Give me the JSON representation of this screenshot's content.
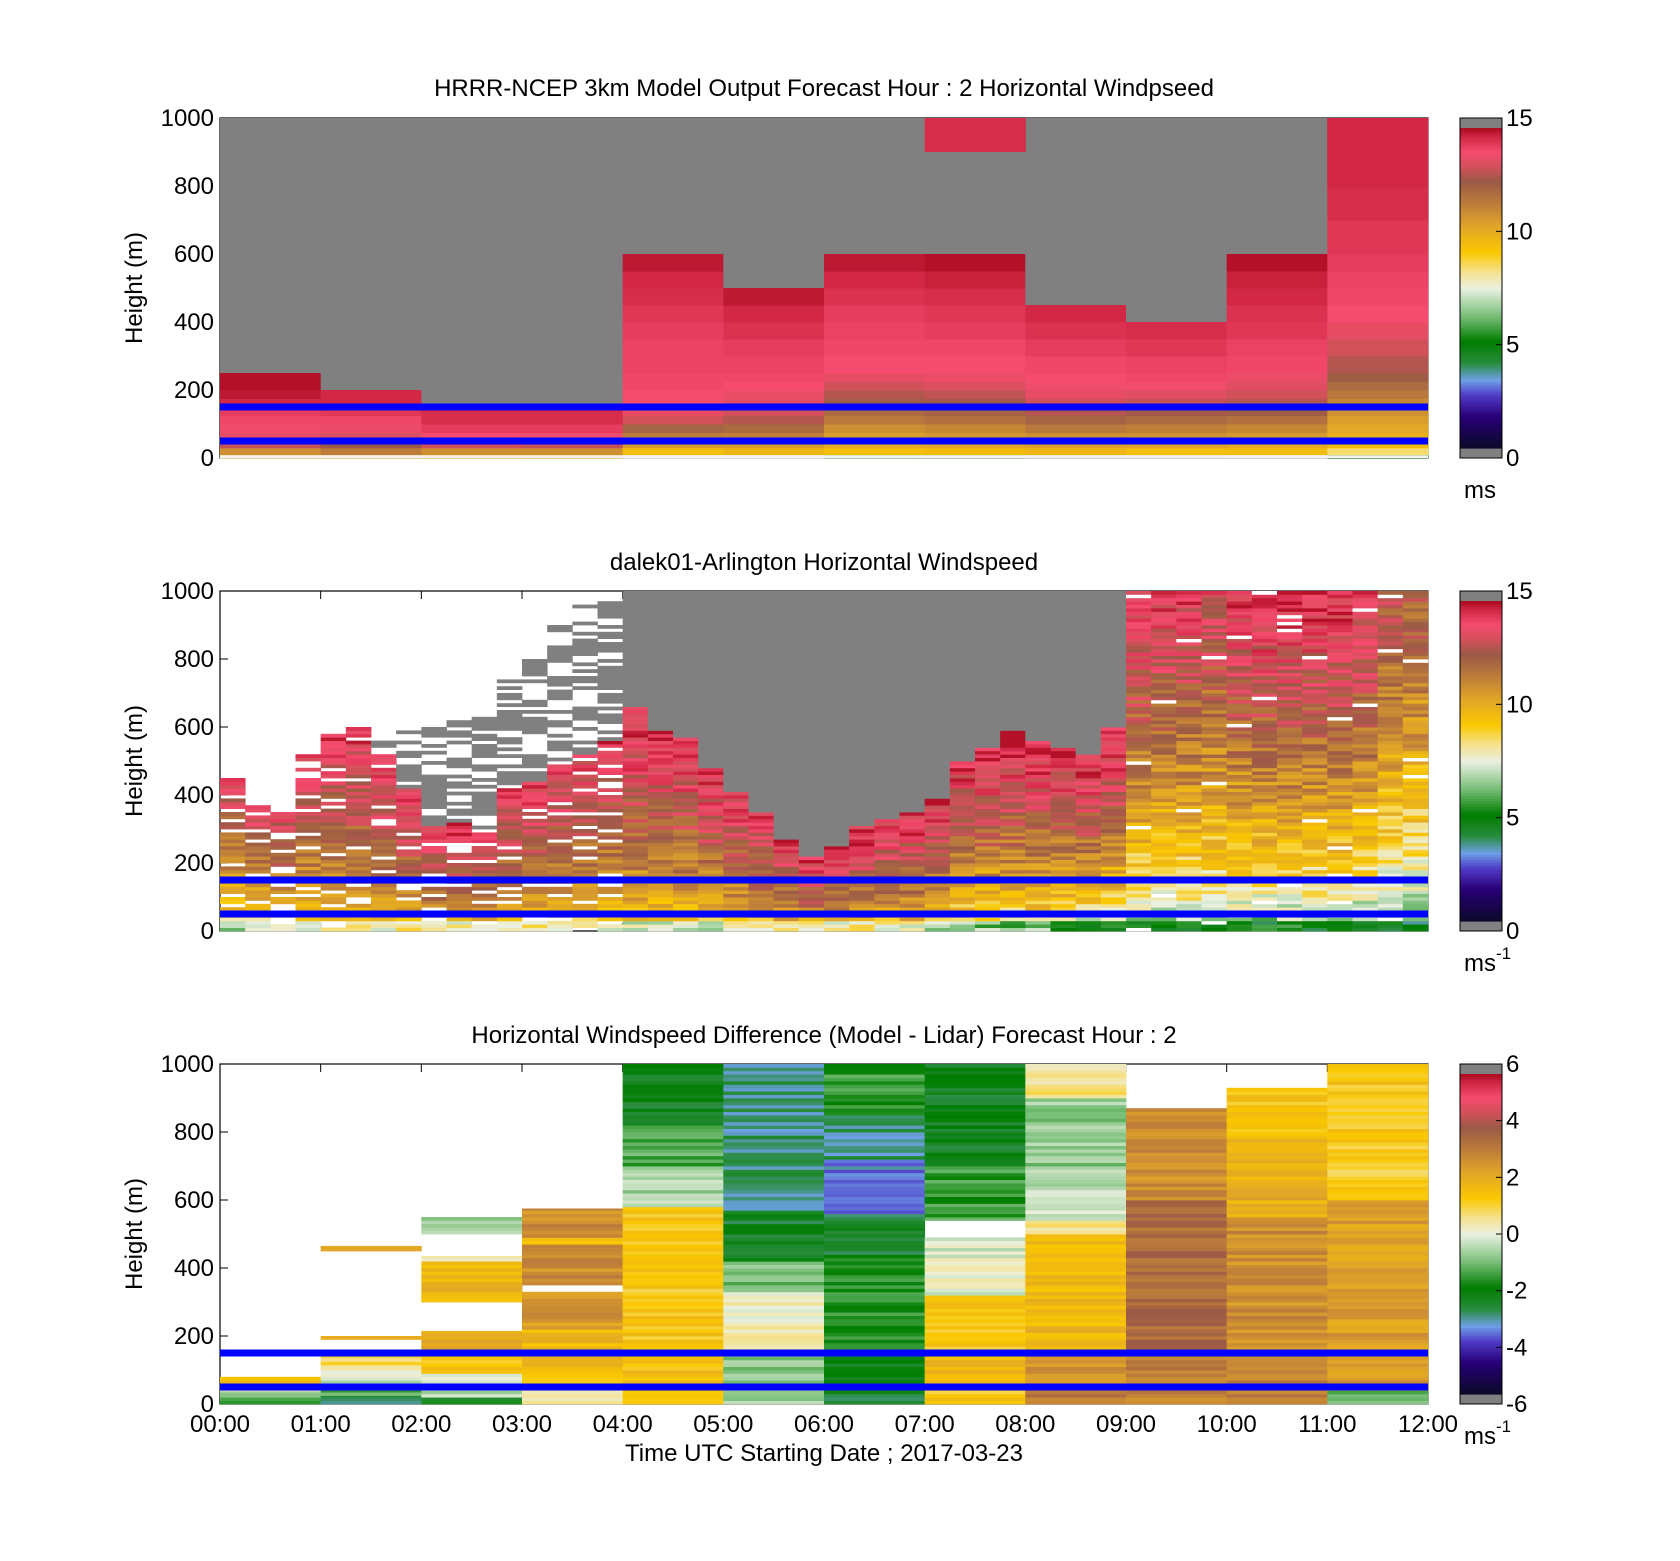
{
  "figure": {
    "x_tick_labels": [
      "00:00",
      "01:00",
      "02:00",
      "03:00",
      "04:00",
      "05:00",
      "06:00",
      "07:00",
      "08:00",
      "09:00",
      "10:00",
      "11:00",
      "12:00"
    ],
    "xlabel": "Time UTC  Starting Date ; 2017-03-23",
    "reference_lines_m": [
      150,
      50
    ],
    "reference_line_color": "#0000ff",
    "no_data_color": "#808080"
  },
  "chart_data": [
    {
      "type": "heatmap",
      "title": "HRRR-NCEP 3km Model Output   Forecast Hour : 2 Horizontal Windpseed",
      "ylabel": "Height (m)",
      "y_ticks": [
        "0",
        "200",
        "400",
        "600",
        "800",
        "1000"
      ],
      "xlim": [
        "00:00",
        "12:00"
      ],
      "ylim": [
        0,
        1000
      ],
      "colorbar": {
        "ticks": [
          "0",
          "5",
          "10",
          "15"
        ],
        "range": [
          0,
          15
        ],
        "unit": "ms",
        "unit_sup": ""
      },
      "time_bins_hours": [
        0,
        1,
        2,
        3,
        4,
        5,
        6,
        7,
        8,
        9,
        10,
        11
      ],
      "bin_width_hours": 1,
      "height_levels_m": [
        10,
        30,
        50,
        75,
        100,
        125,
        150,
        175,
        200,
        225,
        250,
        300,
        350,
        400,
        450,
        500,
        550,
        600,
        700,
        800,
        900,
        1000
      ],
      "valid_top_m": [
        250,
        200,
        150,
        150,
        600,
        500,
        600,
        600,
        450,
        400,
        600,
        1000
      ],
      "bands": [
        {
          "h": 900,
          "value": 14.5,
          "hours": [
            7
          ]
        },
        {
          "h": 800,
          "value": 14.6,
          "hours": [
            11
          ]
        }
      ],
      "profiles": [
        {
          "hour": 0,
          "values": [
            8.5,
            11.0,
            13.0,
            13.6,
            13.8,
            14.0,
            14.2,
            14.6,
            14.8,
            14.9
          ]
        },
        {
          "hour": 1,
          "values": [
            8.6,
            11.5,
            12.5,
            13.4,
            13.7,
            14.0,
            14.3,
            14.6
          ]
        },
        {
          "hour": 2,
          "values": [
            8.8,
            11.0,
            13.2,
            13.9,
            14.2,
            14.5
          ]
        },
        {
          "hour": 3,
          "values": [
            8.9,
            11.0,
            13.0,
            13.8,
            14.2,
            14.5
          ]
        },
        {
          "hour": 4,
          "values": [
            7.5,
            9.5,
            10.6,
            11.5,
            12.2,
            13.2,
            13.6,
            13.8,
            13.9,
            14.0,
            14.0,
            14.1,
            14.1,
            14.2,
            14.3,
            14.5,
            14.6,
            14.8
          ]
        },
        {
          "hour": 5,
          "values": [
            7.6,
            9.8,
            10.6,
            11.4,
            12.0,
            12.8,
            13.2,
            13.5,
            13.7,
            13.9,
            14.0,
            14.1,
            14.2,
            14.4,
            14.6,
            14.8
          ]
        },
        {
          "hour": 6,
          "values": [
            6.5,
            9.5,
            10.2,
            10.6,
            11.0,
            11.6,
            12.0,
            12.4,
            12.8,
            13.2,
            13.6,
            13.9,
            14.0,
            14.1,
            14.2,
            14.4,
            14.6,
            14.8
          ]
        },
        {
          "hour": 7,
          "values": [
            6.6,
            9.6,
            10.3,
            10.8,
            11.2,
            11.8,
            12.2,
            12.6,
            13.0,
            13.4,
            13.7,
            13.9,
            14.0,
            14.2,
            14.3,
            14.5,
            14.7,
            14.9
          ]
        },
        {
          "hour": 8,
          "values": [
            7.0,
            9.8,
            10.5,
            11.0,
            11.6,
            12.2,
            12.8,
            13.2,
            13.6,
            13.8,
            13.9,
            14.0,
            14.2,
            14.4,
            14.6
          ]
        },
        {
          "hour": 9,
          "values": [
            7.0,
            9.5,
            10.4,
            10.9,
            11.4,
            12.0,
            12.6,
            13.0,
            13.5,
            13.8,
            14.0,
            14.1,
            14.3,
            14.5
          ]
        },
        {
          "hour": 10,
          "values": [
            7.2,
            9.6,
            10.2,
            10.7,
            11.2,
            11.8,
            12.4,
            12.8,
            13.2,
            13.5,
            13.7,
            14.0,
            14.1,
            14.3,
            14.4,
            14.6,
            14.7,
            14.9
          ]
        },
        {
          "hour": 11,
          "values": [
            5.5,
            8.5,
            9.6,
            10.0,
            10.3,
            10.6,
            10.9,
            11.2,
            11.6,
            12.0,
            12.4,
            12.8,
            13.2,
            13.6,
            13.9,
            14.0,
            14.1,
            14.2,
            14.3,
            14.5,
            14.7,
            14.8
          ]
        }
      ]
    },
    {
      "type": "heatmap",
      "title": "dalek01-Arlington  Horizontal Windspeed",
      "ylabel": "Height (m)",
      "y_ticks": [
        "0",
        "200",
        "400",
        "600",
        "800",
        "1000"
      ],
      "xlim": [
        "00:00",
        "12:00"
      ],
      "ylim": [
        0,
        1000
      ],
      "colorbar": {
        "ticks": [
          "0",
          "5",
          "10",
          "15"
        ],
        "range": [
          0,
          15
        ],
        "unit": "ms",
        "unit_sup": "-1"
      },
      "time_bins_hours": [
        0,
        0.25,
        0.5,
        0.75,
        1,
        1.25,
        1.5,
        1.75,
        2,
        2.25,
        2.5,
        2.75,
        3,
        3.25,
        3.5,
        3.75,
        4,
        4.25,
        4.5,
        4.75,
        5,
        5.25,
        5.5,
        5.75,
        6,
        6.25,
        6.5,
        6.75,
        7,
        7.25,
        7.5,
        7.75,
        8,
        8.25,
        8.5,
        8.75,
        9,
        9.25,
        9.5,
        9.75,
        10,
        10.25,
        10.5,
        10.75,
        11,
        11.25,
        11.5,
        11.75
      ],
      "bin_width_hours": 0.25,
      "cell_height_m": 10,
      "column_data_top_m": [
        450,
        380,
        350,
        520,
        580,
        600,
        520,
        420,
        310,
        320,
        290,
        430,
        440,
        490,
        520,
        560,
        660,
        590,
        570,
        480,
        410,
        350,
        270,
        220,
        250,
        310,
        330,
        350,
        390,
        500,
        540,
        590,
        560,
        540,
        520,
        600,
        1000,
        1000,
        1000,
        1000,
        1000,
        1000,
        1000,
        1000,
        1000,
        1000,
        1000,
        1000
      ],
      "column_valid_top_m": [
        310,
        330,
        350,
        370,
        480,
        520,
        560,
        600,
        610,
        620,
        650,
        740,
        830,
        900,
        960,
        1000,
        1000,
        1000,
        1000,
        1000,
        1000,
        1000,
        1000,
        1000,
        1000,
        1000,
        1000,
        1000,
        1000,
        1000,
        1000,
        1000,
        1000,
        1000,
        1000,
        1000,
        1000,
        1000,
        1000,
        1000,
        1000,
        1000,
        1000,
        1000,
        1000,
        1000,
        1000,
        1000
      ],
      "column_low_speed_m_s": [
        7.5,
        7.5,
        8.0,
        8.2,
        8.4,
        8.5,
        8.6,
        8.8,
        8.8,
        8.6,
        8.7,
        8.8,
        8.8,
        8.5,
        8.4,
        8.2,
        8.0,
        7.6,
        7.6,
        7.8,
        8.0,
        8.2,
        8.5,
        8.6,
        8.5,
        8.5,
        8.2,
        8.0,
        7.6,
        7.0,
        6.8,
        6.8,
        6.8,
        6.4,
        6.0,
        5.9,
        5.6,
        5.5,
        5.6,
        5.6,
        5.4,
        5.3,
        5.4,
        5.3,
        5.2,
        5.1,
        5.0,
        5.0
      ],
      "column_high_speed_m_s": [
        13.8,
        13.9,
        14.0,
        14.2,
        14.3,
        14.4,
        14.5,
        14.3,
        14.5,
        14.6,
        14.5,
        14.4,
        14.4,
        14.3,
        14.2,
        14.3,
        14.6,
        14.5,
        14.6,
        14.6,
        14.4,
        14.4,
        14.5,
        14.6,
        14.7,
        14.6,
        14.5,
        14.5,
        14.4,
        14.4,
        14.6,
        14.7,
        14.6,
        14.6,
        14.7,
        14.8,
        14.4,
        14.2,
        14.1,
        13.6,
        14.4,
        14.6,
        14.8,
        14.5,
        14.6,
        14.3,
        13.0,
        12.6
      ],
      "layers_m": [
        {
          "top": 1000,
          "shade": 1.0
        }
      ]
    },
    {
      "type": "heatmap",
      "title": "Horizontal Windspeed Difference (Model - Lidar) Forecast Hour : 2",
      "ylabel": "Height (m)",
      "y_ticks": [
        "0",
        "200",
        "400",
        "600",
        "800",
        "1000"
      ],
      "x_tick_labels_shown": true,
      "xlim": [
        "00:00",
        "12:00"
      ],
      "ylim": [
        0,
        1000
      ],
      "colorbar": {
        "ticks": [
          "-6",
          "-4",
          "-2",
          "0",
          "2",
          "4",
          "6"
        ],
        "range": [
          -6,
          6
        ],
        "unit": "ms",
        "unit_sup": "-1"
      },
      "time_bins_hours": [
        0,
        1,
        2,
        3,
        4,
        5,
        6,
        7,
        8,
        9,
        10,
        11
      ],
      "bin_width_hours": 1,
      "columns": [
        {
          "hour": 0,
          "segments": [
            {
              "from": 0,
              "to": 25,
              "value": -1.2
            },
            {
              "from": 25,
              "to": 40,
              "value": -0.5
            },
            {
              "from": 40,
              "to": 60,
              "value": 0.4
            },
            {
              "from": 60,
              "to": 80,
              "value": 1.6
            }
          ]
        },
        {
          "hour": 1,
          "segments": [
            {
              "from": 0,
              "to": 25,
              "value": -2.8
            },
            {
              "from": 25,
              "to": 60,
              "value": -1.4
            },
            {
              "from": 60,
              "to": 80,
              "value": -0.6
            },
            {
              "from": 80,
              "to": 115,
              "value": 0.3
            },
            {
              "from": 115,
              "to": 150,
              "value": 0.8
            },
            {
              "from": 190,
              "to": 200,
              "value": 2.4
            },
            {
              "from": 450,
              "to": 465,
              "value": 2.5
            }
          ]
        },
        {
          "hour": 2,
          "segments": [
            {
              "from": 0,
              "to": 20,
              "value": -2.2
            },
            {
              "from": 20,
              "to": 50,
              "value": -0.4
            },
            {
              "from": 50,
              "to": 90,
              "value": 0.2
            },
            {
              "from": 90,
              "to": 150,
              "value": 1.5
            },
            {
              "from": 150,
              "to": 215,
              "value": 2.1
            },
            {
              "from": 300,
              "to": 420,
              "value": 1.8
            },
            {
              "from": 420,
              "to": 435,
              "value": 0.4
            },
            {
              "from": 500,
              "to": 550,
              "value": -0.8
            }
          ]
        },
        {
          "hour": 3,
          "segments": [
            {
              "from": 0,
              "to": 60,
              "value": 0.6
            },
            {
              "from": 60,
              "to": 150,
              "value": 1.6
            },
            {
              "from": 150,
              "to": 220,
              "value": 1.8
            },
            {
              "from": 220,
              "to": 330,
              "value": 2.6
            },
            {
              "from": 350,
              "to": 470,
              "value": 2.8
            },
            {
              "from": 470,
              "to": 490,
              "value": 1.8
            },
            {
              "from": 490,
              "to": 575,
              "value": 2.8
            }
          ]
        },
        {
          "hour": 4,
          "segments": [
            {
              "from": 0,
              "to": 60,
              "value": 1.2
            },
            {
              "from": 60,
              "to": 150,
              "value": 1.6
            },
            {
              "from": 150,
              "to": 580,
              "value": 1.4
            },
            {
              "from": 580,
              "to": 620,
              "value": -0.4
            },
            {
              "from": 620,
              "to": 700,
              "value": -0.6
            },
            {
              "from": 700,
              "to": 820,
              "value": -1.4
            },
            {
              "from": 820,
              "to": 1000,
              "value": -2.4
            }
          ]
        },
        {
          "hour": 5,
          "segments": [
            {
              "from": 0,
              "to": 50,
              "value": -0.6
            },
            {
              "from": 50,
              "to": 150,
              "value": -0.8
            },
            {
              "from": 150,
              "to": 330,
              "value": 0.3
            },
            {
              "from": 330,
              "to": 420,
              "value": -1.0
            },
            {
              "from": 420,
              "to": 560,
              "value": -2.5
            },
            {
              "from": 560,
              "to": 1000,
              "value": -3.0
            }
          ]
        },
        {
          "hour": 6,
          "segments": [
            {
              "from": 0,
              "to": 60,
              "value": -2.6
            },
            {
              "from": 60,
              "to": 150,
              "value": -2.2
            },
            {
              "from": 150,
              "to": 440,
              "value": -1.8
            },
            {
              "from": 440,
              "to": 560,
              "value": -2.6
            },
            {
              "from": 560,
              "to": 720,
              "value": -3.6
            },
            {
              "from": 720,
              "to": 850,
              "value": -3.0
            },
            {
              "from": 850,
              "to": 1000,
              "value": -1.6
            }
          ]
        },
        {
          "hour": 7,
          "segments": [
            {
              "from": 0,
              "to": 60,
              "value": 1.4
            },
            {
              "from": 60,
              "to": 150,
              "value": 1.8
            },
            {
              "from": 150,
              "to": 320,
              "value": 1.4
            },
            {
              "from": 320,
              "to": 440,
              "value": 0.0
            },
            {
              "from": 440,
              "to": 490,
              "value": -0.2
            },
            {
              "from": 540,
              "to": 700,
              "value": -1.6
            },
            {
              "from": 700,
              "to": 1000,
              "value": -2.4
            }
          ]
        },
        {
          "hour": 8,
          "segments": [
            {
              "from": 0,
              "to": 60,
              "value": 3.2
            },
            {
              "from": 60,
              "to": 150,
              "value": 2.8
            },
            {
              "from": 150,
              "to": 500,
              "value": 1.8
            },
            {
              "from": 500,
              "to": 540,
              "value": 0.6
            },
            {
              "from": 540,
              "to": 700,
              "value": -0.4
            },
            {
              "from": 700,
              "to": 900,
              "value": -0.8
            },
            {
              "from": 900,
              "to": 1000,
              "value": 0.6
            }
          ]
        },
        {
          "hour": 9,
          "segments": [
            {
              "from": 0,
              "to": 60,
              "value": 3.0
            },
            {
              "from": 60,
              "to": 150,
              "value": 3.2
            },
            {
              "from": 150,
              "to": 600,
              "value": 3.6
            },
            {
              "from": 600,
              "to": 870,
              "value": 2.8
            }
          ]
        },
        {
          "hour": 10,
          "segments": [
            {
              "from": 0,
              "to": 60,
              "value": 3.0
            },
            {
              "from": 60,
              "to": 150,
              "value": 3.0
            },
            {
              "from": 150,
              "to": 550,
              "value": 2.8
            },
            {
              "from": 550,
              "to": 780,
              "value": 2.0
            },
            {
              "from": 780,
              "to": 930,
              "value": 1.4
            }
          ]
        },
        {
          "hour": 11,
          "segments": [
            {
              "from": 0,
              "to": 40,
              "value": -1.0
            },
            {
              "from": 40,
              "to": 150,
              "value": 2.6
            },
            {
              "from": 150,
              "to": 600,
              "value": 2.4
            },
            {
              "from": 600,
              "to": 800,
              "value": 1.2
            },
            {
              "from": 800,
              "to": 1000,
              "value": 1.4
            }
          ]
        }
      ]
    }
  ]
}
